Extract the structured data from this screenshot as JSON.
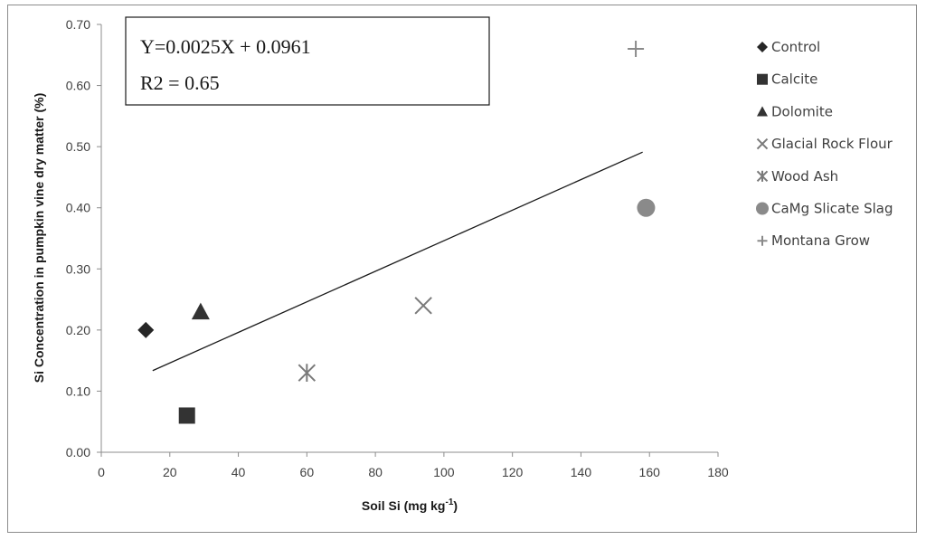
{
  "chart_data": {
    "type": "scatter",
    "title": "",
    "xlabel": "Soil Si (mg kg",
    "xlabel_sup": "-1",
    "xlabel_end": ")",
    "ylabel": "Si Concentration in pumpkin vine dry matter (%)",
    "xlim": [
      0,
      180
    ],
    "ylim": [
      0,
      0.7
    ],
    "x_ticks": [
      0,
      20,
      40,
      60,
      80,
      100,
      120,
      140,
      160,
      180
    ],
    "y_ticks": [
      0.0,
      0.1,
      0.2,
      0.3,
      0.4,
      0.5,
      0.6,
      0.7
    ],
    "grid": false,
    "legend_position": "right",
    "series": [
      {
        "name": "Control",
        "marker": "diamond",
        "color": "#262626",
        "x": [
          13
        ],
        "y": [
          0.2
        ]
      },
      {
        "name": "Calcite",
        "marker": "square",
        "color": "#333333",
        "x": [
          25
        ],
        "y": [
          0.06
        ]
      },
      {
        "name": "Dolomite",
        "marker": "triangle",
        "color": "#333333",
        "x": [
          29
        ],
        "y": [
          0.23
        ]
      },
      {
        "name": "Glacial Rock Flour",
        "marker": "x",
        "color": "#7a7a7a",
        "x": [
          94
        ],
        "y": [
          0.24
        ]
      },
      {
        "name": "Wood Ash",
        "marker": "asterisk",
        "color": "#7a7a7a",
        "x": [
          60
        ],
        "y": [
          0.13
        ]
      },
      {
        "name": "CaMg Slicate Slag",
        "marker": "circle",
        "color": "#8a8a8a",
        "x": [
          159
        ],
        "y": [
          0.4
        ]
      },
      {
        "name": "Montana Grow",
        "marker": "plus",
        "color": "#8a8a8a",
        "x": [
          156
        ],
        "y": [
          0.66
        ]
      }
    ],
    "trendline": {
      "slope": 0.0025,
      "intercept": 0.0961,
      "x_start": 15,
      "x_end": 158,
      "color": "#1a1a1a"
    },
    "annotation": {
      "equation": "Y=0.0025X + 0.0961",
      "r2": "R2 = 0.65"
    }
  }
}
